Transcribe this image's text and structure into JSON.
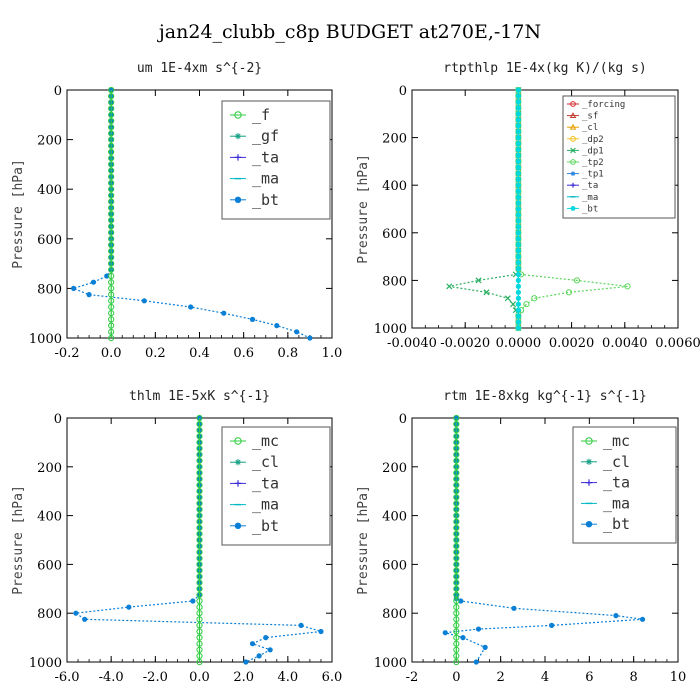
{
  "title": "jan24_clubb_c8p  BUDGET at270E,-17N",
  "chart_data": [
    {
      "type": "line",
      "title": "um  1E-4xm s^{-2}",
      "ylabel": "Pressure [hPa]",
      "xlim": [
        -0.2,
        1.0
      ],
      "ylim": [
        1000,
        0
      ],
      "xticks": [
        "-0.2",
        "0.0",
        "0.2",
        "0.4",
        "0.6",
        "0.8",
        "1.0"
      ],
      "xtick_values": [
        -0.2,
        0.0,
        0.2,
        0.4,
        0.6,
        0.8,
        1.0
      ],
      "yticks": [
        "0",
        "200",
        "400",
        "600",
        "800",
        "1000"
      ],
      "ytick_values": [
        0,
        200,
        400,
        600,
        800,
        1000
      ],
      "legend_position": "top-right",
      "legend_style": "large",
      "series": [
        {
          "name": "_f",
          "color": "#2ecc40",
          "marker": "circle",
          "x": [
            0,
            0,
            0,
            0,
            0,
            0,
            0,
            0,
            0,
            0,
            0,
            0,
            0,
            0,
            0,
            0,
            0,
            0,
            0,
            0,
            0,
            0,
            0,
            0,
            0,
            0,
            0,
            0,
            0,
            0,
            0,
            0,
            0,
            0,
            0,
            0,
            0,
            0,
            0,
            0,
            0
          ],
          "y": [
            0,
            25,
            50,
            75,
            100,
            125,
            150,
            175,
            200,
            225,
            250,
            275,
            300,
            325,
            350,
            375,
            400,
            425,
            450,
            475,
            500,
            525,
            550,
            575,
            600,
            625,
            650,
            675,
            700,
            725,
            750,
            775,
            800,
            825,
            850,
            875,
            900,
            925,
            950,
            975,
            1000
          ]
        },
        {
          "name": "_gf",
          "color": "#16a085",
          "marker": "star",
          "x": [],
          "y": []
        },
        {
          "name": "_ta",
          "color": "#3a2bd8",
          "marker": "plus",
          "x": [],
          "y": []
        },
        {
          "name": "_ma",
          "color": "#00b8c4",
          "marker": "dash",
          "x": [],
          "y": []
        },
        {
          "name": "_bt",
          "color": "#0a7fd6",
          "marker": "dot",
          "x": [
            0,
            0,
            0,
            0,
            0,
            0,
            0,
            0,
            0,
            0,
            0,
            0,
            0,
            0,
            0,
            0,
            0,
            0,
            0,
            0,
            0,
            0,
            0,
            0,
            0,
            0,
            0,
            0,
            0,
            0,
            -0.02,
            -0.08,
            -0.17,
            -0.1,
            0.15,
            0.36,
            0.51,
            0.64,
            0.75,
            0.84,
            0.9
          ],
          "y": [
            0,
            25,
            50,
            75,
            100,
            125,
            150,
            175,
            200,
            225,
            250,
            275,
            300,
            325,
            350,
            375,
            400,
            425,
            450,
            475,
            500,
            525,
            550,
            575,
            600,
            625,
            650,
            675,
            700,
            725,
            750,
            775,
            800,
            825,
            850,
            875,
            900,
            925,
            950,
            975,
            1000
          ]
        }
      ]
    },
    {
      "type": "line",
      "title": "rtpthlp  1E-4x(kg K)/(kg s)",
      "ylabel": "Pressure [hPa]",
      "xlim": [
        -0.004,
        0.006
      ],
      "ylim": [
        1000,
        0
      ],
      "xticks": [
        "-0.0040",
        "-0.0020",
        "0.0000",
        "0.0020",
        "0.0040",
        "0.0060"
      ],
      "xtick_values": [
        -0.004,
        -0.002,
        0.0,
        0.002,
        0.004,
        0.006
      ],
      "yticks": [
        "0",
        "200",
        "400",
        "600",
        "800",
        "1000"
      ],
      "ytick_values": [
        0,
        200,
        400,
        600,
        800,
        1000
      ],
      "legend_position": "top-right",
      "legend_style": "small",
      "series": [
        {
          "name": "_forcing",
          "color": "#d62728",
          "marker": "circle",
          "x": [],
          "y": []
        },
        {
          "name": "_sf",
          "color": "#c0392b",
          "marker": "triangle",
          "x": [],
          "y": []
        },
        {
          "name": "_cl",
          "color": "#e69f00",
          "marker": "triangle",
          "x": [],
          "y": []
        },
        {
          "name": "_dp2",
          "color": "#f0c020",
          "marker": "circle",
          "x": [],
          "y": []
        },
        {
          "name": "_dp1",
          "color": "#27ae60",
          "marker": "x",
          "x": [
            0,
            0,
            0,
            0,
            0,
            0,
            0,
            0,
            0,
            0,
            0,
            0,
            0,
            0,
            0,
            0,
            0,
            0,
            0,
            0,
            0,
            0,
            0,
            0,
            0,
            0,
            0,
            0,
            0,
            0,
            0,
            -0.0001,
            -0.0015,
            -0.0026,
            -0.0012,
            -0.0004,
            -0.0002,
            -0.0001,
            0,
            0,
            0
          ],
          "y": [
            0,
            25,
            50,
            75,
            100,
            125,
            150,
            175,
            200,
            225,
            250,
            275,
            300,
            325,
            350,
            375,
            400,
            425,
            450,
            475,
            500,
            525,
            550,
            575,
            600,
            625,
            650,
            675,
            700,
            725,
            750,
            775,
            800,
            825,
            850,
            875,
            900,
            925,
            950,
            975,
            1000
          ]
        },
        {
          "name": "_tp2",
          "color": "#5bd65b",
          "marker": "circle",
          "x": [
            0,
            0,
            0,
            0,
            0,
            0,
            0,
            0,
            0,
            0,
            0,
            0,
            0,
            0,
            0,
            0,
            0,
            0,
            0,
            0,
            0,
            0,
            0,
            0,
            0,
            0,
            0,
            0,
            0,
            0,
            0,
            0.0001,
            0.0022,
            0.0041,
            0.0019,
            0.0006,
            0.0003,
            0.0001,
            0,
            0,
            0
          ],
          "y": [
            0,
            25,
            50,
            75,
            100,
            125,
            150,
            175,
            200,
            225,
            250,
            275,
            300,
            325,
            350,
            375,
            400,
            425,
            450,
            475,
            500,
            525,
            550,
            575,
            600,
            625,
            650,
            675,
            700,
            725,
            750,
            775,
            800,
            825,
            850,
            875,
            900,
            925,
            950,
            975,
            1000
          ]
        },
        {
          "name": "_tp1",
          "color": "#2e86de",
          "marker": "star",
          "x": [],
          "y": []
        },
        {
          "name": "_ta",
          "color": "#3a2bd8",
          "marker": "plus",
          "x": [],
          "y": []
        },
        {
          "name": "_ma",
          "color": "#00b8c4",
          "marker": "dash",
          "x": [],
          "y": []
        },
        {
          "name": "_bt",
          "color": "#00d8e0",
          "marker": "dot",
          "x": [
            0,
            0,
            0,
            0,
            0,
            0,
            0,
            0,
            0,
            0,
            0,
            0,
            0,
            0,
            0,
            0,
            0,
            0,
            0,
            0,
            0,
            0,
            0,
            0,
            0,
            0,
            0,
            0,
            0,
            0,
            0,
            0,
            0,
            0,
            0,
            0,
            0,
            0,
            0,
            0,
            0
          ],
          "y": [
            0,
            25,
            50,
            75,
            100,
            125,
            150,
            175,
            200,
            225,
            250,
            275,
            300,
            325,
            350,
            375,
            400,
            425,
            450,
            475,
            500,
            525,
            550,
            575,
            600,
            625,
            650,
            675,
            700,
            725,
            750,
            775,
            800,
            825,
            850,
            875,
            900,
            925,
            950,
            975,
            1000
          ]
        }
      ]
    },
    {
      "type": "line",
      "title": "thlm  1E-5xK s^{-1}",
      "ylabel": "Pressure [hPa]",
      "xlim": [
        -6.0,
        6.0
      ],
      "ylim": [
        1000,
        0
      ],
      "xticks": [
        "-6.0",
        "-4.0",
        "-2.0",
        "0.0",
        "2.0",
        "4.0",
        "6.0"
      ],
      "xtick_values": [
        -6.0,
        -4.0,
        -2.0,
        0.0,
        2.0,
        4.0,
        6.0
      ],
      "yticks": [
        "0",
        "200",
        "400",
        "600",
        "800",
        "1000"
      ],
      "ytick_values": [
        0,
        200,
        400,
        600,
        800,
        1000
      ],
      "legend_position": "top-right",
      "legend_style": "large",
      "series": [
        {
          "name": "_mc",
          "color": "#2ecc40",
          "marker": "circle",
          "x": [
            0,
            0,
            0,
            0,
            0,
            0,
            0,
            0,
            0,
            0,
            0,
            0,
            0,
            0,
            0,
            0,
            0,
            0,
            0,
            0,
            0,
            0,
            0,
            0,
            0,
            0,
            0,
            0,
            0,
            0,
            0,
            0,
            0,
            0,
            0,
            0,
            0,
            0,
            0,
            0,
            0
          ],
          "y": [
            0,
            25,
            50,
            75,
            100,
            125,
            150,
            175,
            200,
            225,
            250,
            275,
            300,
            325,
            350,
            375,
            400,
            425,
            450,
            475,
            500,
            525,
            550,
            575,
            600,
            625,
            650,
            675,
            700,
            725,
            750,
            775,
            800,
            825,
            850,
            875,
            900,
            925,
            950,
            975,
            1000
          ]
        },
        {
          "name": "_cl",
          "color": "#16a085",
          "marker": "star",
          "x": [],
          "y": []
        },
        {
          "name": "_ta",
          "color": "#3a2bd8",
          "marker": "plus",
          "x": [],
          "y": []
        },
        {
          "name": "_ma",
          "color": "#00b8c4",
          "marker": "dash",
          "x": [],
          "y": []
        },
        {
          "name": "_bt",
          "color": "#0a7fd6",
          "marker": "dot",
          "x": [
            0,
            0,
            0,
            0,
            0,
            0,
            0,
            0,
            0,
            0,
            0,
            0,
            0,
            0,
            0,
            0,
            0,
            0,
            0,
            0,
            0,
            0,
            0,
            0,
            0,
            0,
            0,
            0,
            0,
            0,
            -0.3,
            -3.2,
            -5.6,
            -5.2,
            4.6,
            5.5,
            3.0,
            2.4,
            3.2,
            2.7,
            2.1
          ],
          "y": [
            0,
            25,
            50,
            75,
            100,
            125,
            150,
            175,
            200,
            225,
            250,
            275,
            300,
            325,
            350,
            375,
            400,
            425,
            450,
            475,
            500,
            525,
            550,
            575,
            600,
            625,
            650,
            675,
            700,
            725,
            750,
            775,
            800,
            825,
            850,
            875,
            900,
            925,
            950,
            975,
            1000
          ]
        }
      ]
    },
    {
      "type": "line",
      "title": "rtm  1E-8xkg kg^{-1} s^{-1}",
      "ylabel": "Pressure [hPa]",
      "xlim": [
        -2,
        10
      ],
      "ylim": [
        1000,
        0
      ],
      "xticks": [
        "-2",
        "0",
        "2",
        "4",
        "6",
        "8",
        "10"
      ],
      "xtick_values": [
        -2,
        0,
        2,
        4,
        6,
        8,
        10
      ],
      "yticks": [
        "0",
        "200",
        "400",
        "600",
        "800",
        "1000"
      ],
      "ytick_values": [
        0,
        200,
        400,
        600,
        800,
        1000
      ],
      "legend_position": "top-right",
      "legend_style": "large",
      "series": [
        {
          "name": "_mc",
          "color": "#2ecc40",
          "marker": "circle",
          "x": [
            0,
            0,
            0,
            0,
            0,
            0,
            0,
            0,
            0,
            0,
            0,
            0,
            0,
            0,
            0,
            0,
            0,
            0,
            0,
            0,
            0,
            0,
            0,
            0,
            0,
            0,
            0,
            0,
            0,
            0,
            0,
            0,
            0,
            0,
            0,
            0,
            0,
            0,
            0,
            0,
            0
          ],
          "y": [
            0,
            25,
            50,
            75,
            100,
            125,
            150,
            175,
            200,
            225,
            250,
            275,
            300,
            325,
            350,
            375,
            400,
            425,
            450,
            475,
            500,
            525,
            550,
            575,
            600,
            625,
            650,
            675,
            700,
            725,
            750,
            775,
            800,
            825,
            850,
            875,
            900,
            925,
            950,
            975,
            1000
          ]
        },
        {
          "name": "_cl",
          "color": "#16a085",
          "marker": "star",
          "x": [],
          "y": []
        },
        {
          "name": "_ta",
          "color": "#3a2bd8",
          "marker": "plus",
          "x": [],
          "y": []
        },
        {
          "name": "_ma",
          "color": "#00b8c4",
          "marker": "dash",
          "x": [],
          "y": []
        },
        {
          "name": "_bt",
          "color": "#0a7fd6",
          "marker": "dot",
          "x": [
            0,
            0,
            0,
            0,
            0,
            0,
            0,
            0,
            0,
            0,
            0,
            0,
            0,
            0,
            0,
            0,
            0,
            0,
            0,
            0,
            0,
            0,
            0,
            0,
            0,
            0,
            0,
            0,
            0,
            0,
            0,
            0.2,
            2.6,
            7.2,
            8.4,
            4.3,
            1.0,
            -0.5,
            0.3,
            1.3,
            0.9
          ],
          "y": [
            0,
            25,
            50,
            75,
            100,
            125,
            150,
            175,
            200,
            225,
            250,
            275,
            300,
            325,
            350,
            375,
            400,
            425,
            450,
            475,
            500,
            525,
            550,
            575,
            600,
            625,
            650,
            675,
            700,
            725,
            740,
            750,
            780,
            810,
            825,
            850,
            865,
            880,
            900,
            940,
            1000
          ]
        }
      ]
    }
  ]
}
